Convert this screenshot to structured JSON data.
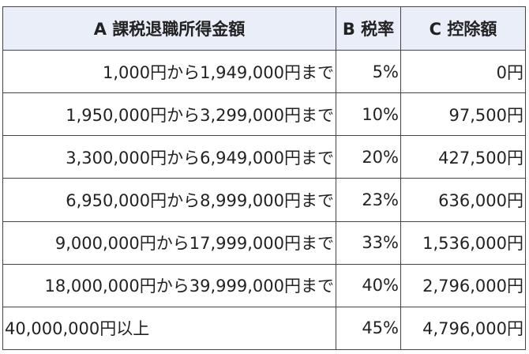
{
  "table": {
    "header": [
      "A 課税退職所得金額",
      "B 税率",
      "C 控除額"
    ],
    "rows": [
      [
        "1,000円から1,949,000円まで",
        "5%",
        "0円"
      ],
      [
        "1,950,000円から3,299,000円まで",
        "10%",
        "97,500円"
      ],
      [
        "3,300,000円から6,949,000円まで",
        "20%",
        "427,500円"
      ],
      [
        "6,950,000円から8,999,000円まで",
        "23%",
        "636,000円"
      ],
      [
        "9,000,000円から17,999,000円まで",
        "33%",
        "1,536,000円"
      ],
      [
        "18,000,000円から39,999,000円まで",
        "40%",
        "2,796,000円"
      ],
      [
        "40,000,000円以上",
        "45%",
        "4,796,000円"
      ]
    ]
  }
}
